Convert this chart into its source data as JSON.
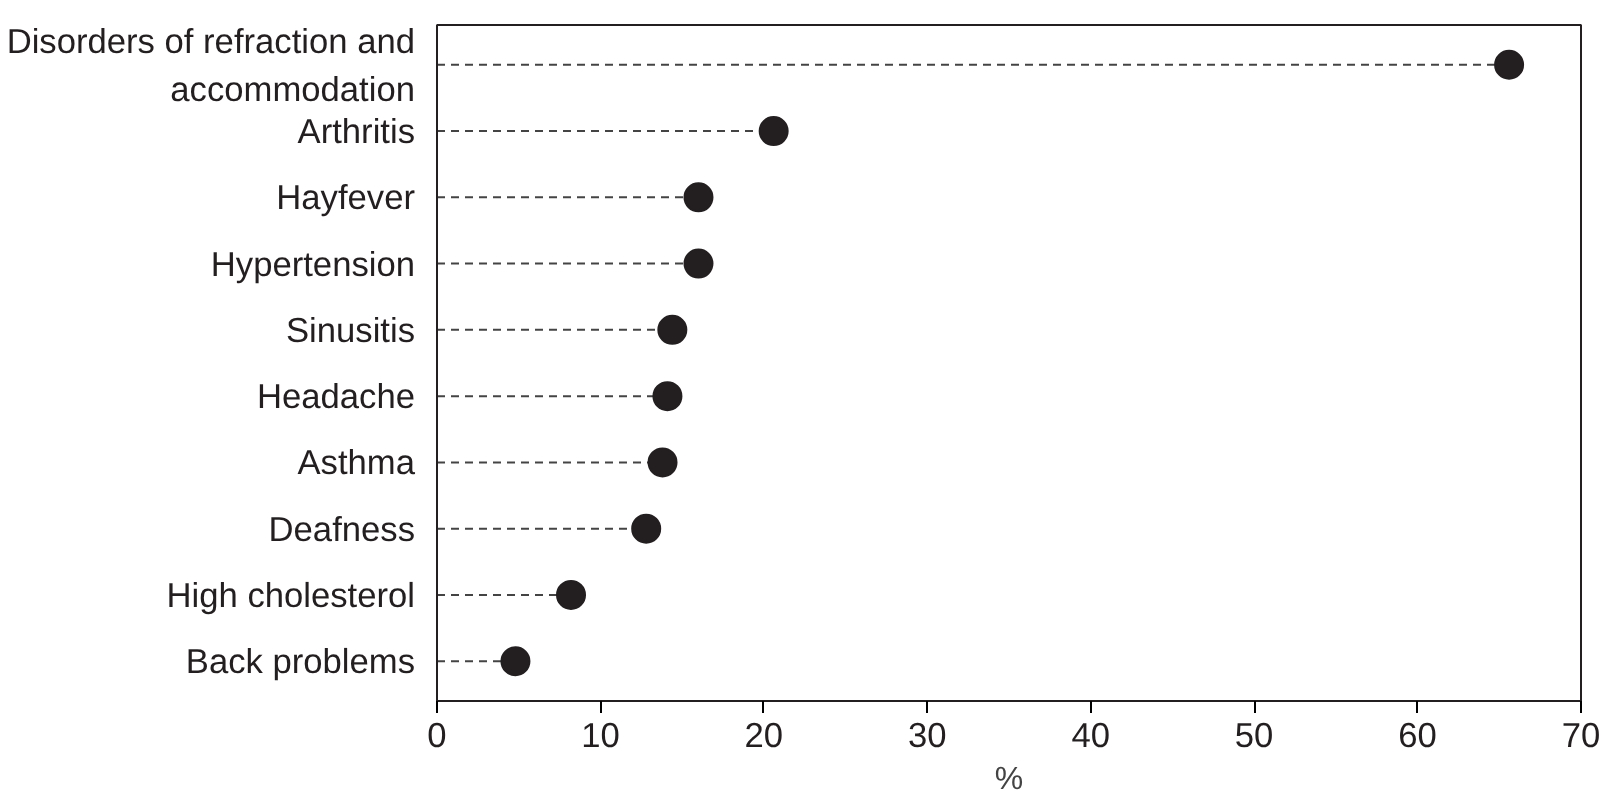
{
  "chart_data": {
    "type": "lollipop",
    "orientation": "horizontal",
    "xlabel": "%",
    "categories": [
      "Disorders of refraction and\naccommodation",
      "Arthritis",
      "Hayfever",
      "Hypertension",
      "Sinusitis",
      "Headache",
      "Asthma",
      "Deafness",
      "High cholesterol",
      "Back problems"
    ],
    "values": [
      65.6,
      20.6,
      16.0,
      16.0,
      14.4,
      14.1,
      13.8,
      12.8,
      8.2,
      4.8
    ],
    "color": "#231f20",
    "marker": "circle",
    "line_style": "dashed",
    "xlim": [
      0,
      70
    ],
    "xticks": [
      0,
      10,
      20,
      30,
      40,
      50,
      60,
      70
    ],
    "grid": false
  }
}
